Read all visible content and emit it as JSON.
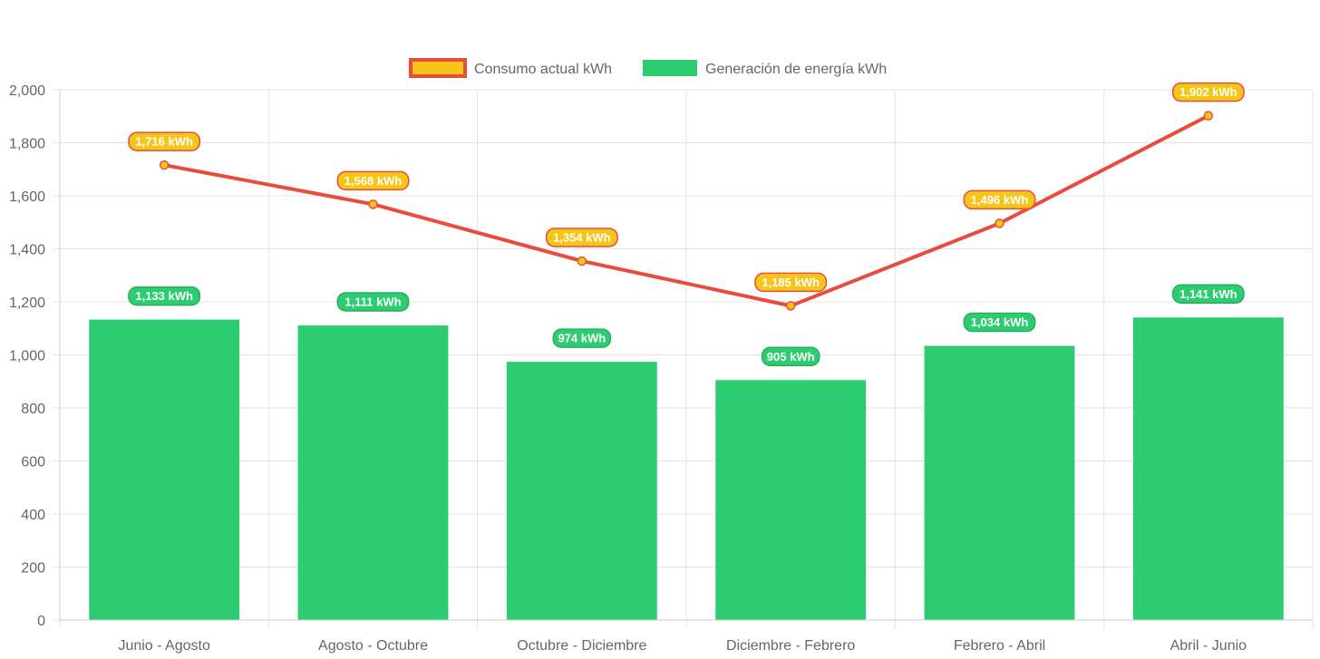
{
  "chart_data": {
    "type": "bar",
    "categories": [
      "Junio - Agosto",
      "Agosto - Octubre",
      "Octubre - Diciembre",
      "Diciembre - Febrero",
      "Febrero - Abril",
      "Abril - Junio"
    ],
    "series": [
      {
        "name": "Consumo actual kWh",
        "type": "line",
        "values": [
          1716,
          1568,
          1354,
          1185,
          1496,
          1902
        ],
        "labels": [
          "1,716 kWh",
          "1,568 kWh",
          "1,354 kWh",
          "1,185 kWh",
          "1,496 kWh",
          "1,902 kWh"
        ],
        "color": "#e74c3c",
        "fill_color": "#f5c518"
      },
      {
        "name": "Generación de energía kWh",
        "type": "bar",
        "values": [
          1133,
          1111,
          974,
          905,
          1034,
          1141
        ],
        "labels": [
          "1,133 kWh",
          "1,111 kWh",
          "974 kWh",
          "905 kWh",
          "1,034 kWh",
          "1,141 kWh"
        ],
        "color": "#2ecc71",
        "label_border_color": "#27ae60"
      }
    ],
    "y_ticks": [
      "0",
      "200",
      "400",
      "600",
      "800",
      "1,000",
      "1,200",
      "1,400",
      "1,600",
      "1,800",
      "2,000"
    ],
    "ylim": [
      0,
      2000
    ],
    "grid": true,
    "legend_position": "top",
    "grid_color": "#e5e5e5",
    "axis_color": "#cccccc"
  }
}
